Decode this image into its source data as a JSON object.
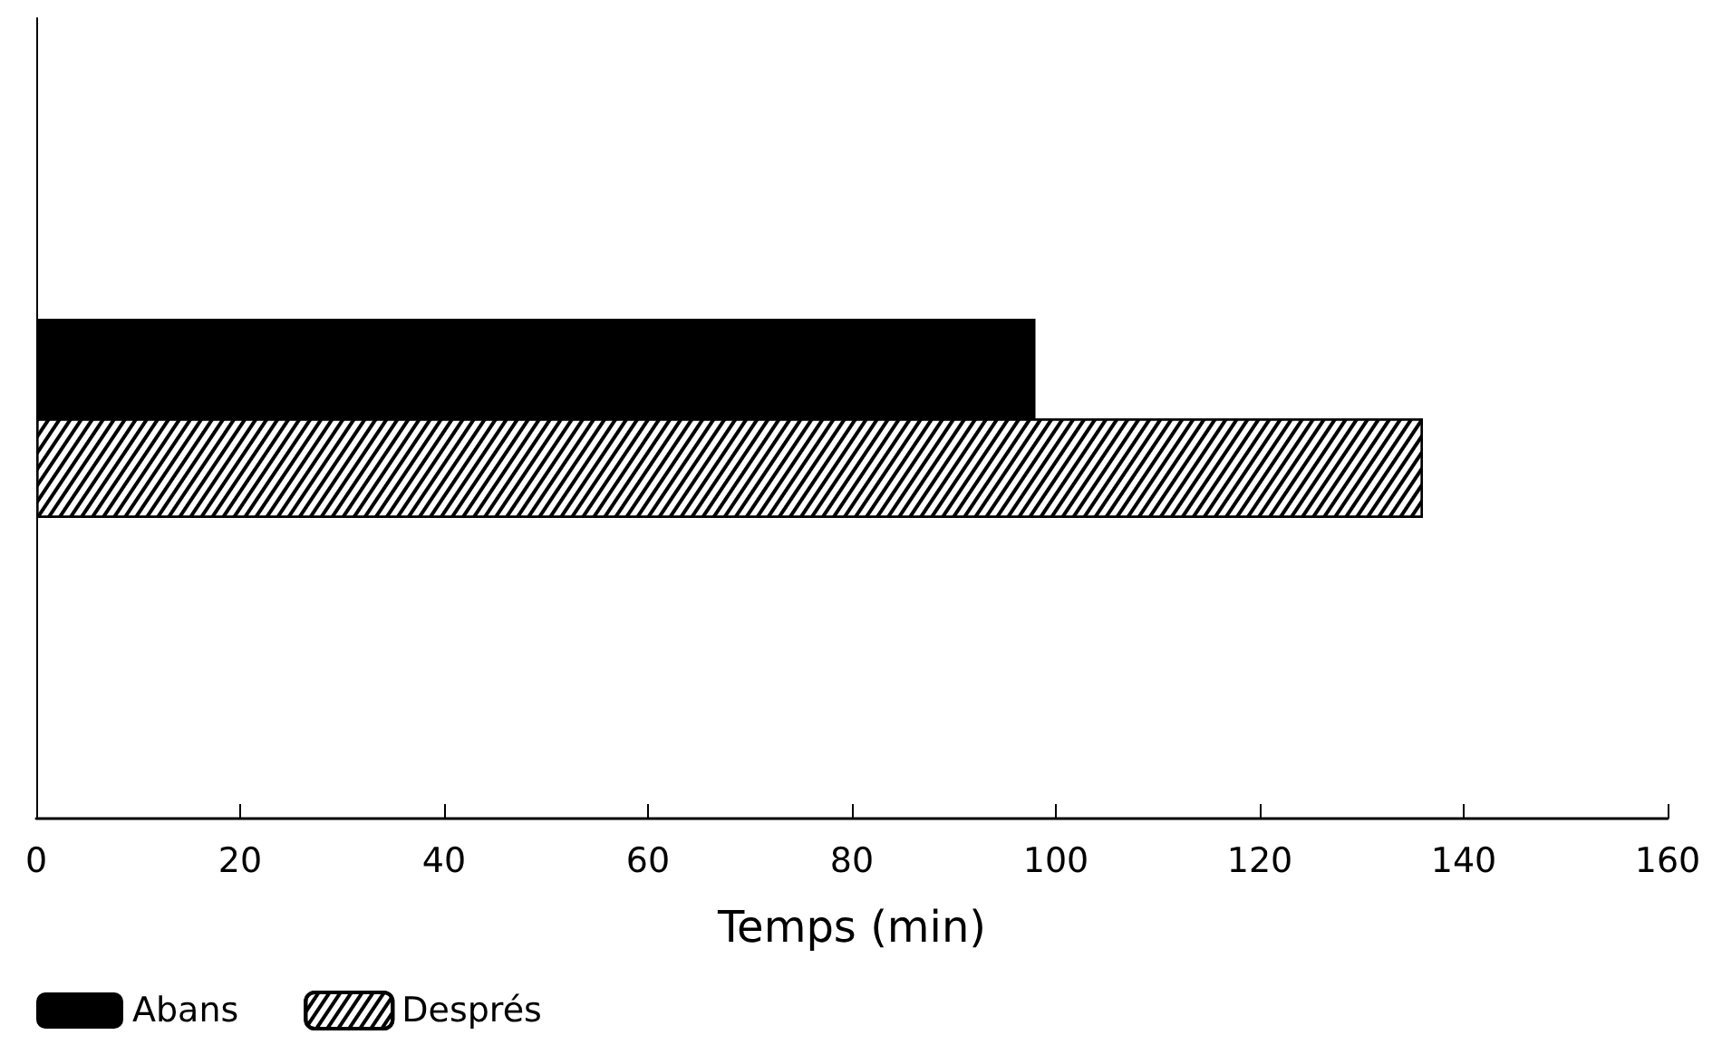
{
  "chart_data": {
    "type": "bar",
    "orientation": "horizontal",
    "xlabel": "Temps (min)",
    "categories": [
      null
    ],
    "series": [
      {
        "name": "Abans",
        "color": "#000000",
        "values": [
          98
        ]
      },
      {
        "name": "Després",
        "color": "#000000",
        "values": [
          136
        ]
      }
    ],
    "xlim": [
      0,
      160
    ],
    "xticks": [
      0,
      20,
      40,
      60,
      80,
      100,
      120,
      140,
      160
    ],
    "grid": false,
    "legend": "bottom left"
  }
}
